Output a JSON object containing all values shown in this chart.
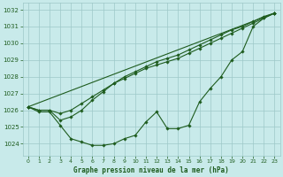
{
  "background_color": "#c8eaea",
  "grid_color": "#9dc8c8",
  "line_color": "#1e5c1e",
  "title": "Graphe pression niveau de la mer (hPa)",
  "xlim": [
    -0.5,
    23.5
  ],
  "ylim": [
    1023.3,
    1032.4
  ],
  "yticks": [
    1024,
    1025,
    1026,
    1027,
    1028,
    1029,
    1030,
    1031,
    1032
  ],
  "xticks": [
    0,
    1,
    2,
    3,
    4,
    5,
    6,
    7,
    8,
    9,
    10,
    11,
    12,
    13,
    14,
    15,
    16,
    17,
    18,
    19,
    20,
    21,
    22,
    23
  ],
  "straight_line_x": [
    0,
    23
  ],
  "straight_line_y": [
    1026.2,
    1031.8
  ],
  "smooth1_x": [
    0,
    1,
    2,
    3,
    4,
    5,
    6,
    7,
    8,
    9,
    10,
    11,
    12,
    13,
    14,
    15,
    16,
    17,
    18,
    19,
    20,
    21,
    22,
    23
  ],
  "smooth1_y": [
    1026.2,
    1026.0,
    1026.0,
    1025.8,
    1026.0,
    1026.4,
    1026.8,
    1027.2,
    1027.6,
    1027.9,
    1028.2,
    1028.5,
    1028.7,
    1028.9,
    1029.1,
    1029.4,
    1029.7,
    1030.0,
    1030.3,
    1030.6,
    1030.9,
    1031.2,
    1031.5,
    1031.8
  ],
  "smooth2_x": [
    0,
    1,
    2,
    3,
    4,
    5,
    6,
    7,
    8,
    9,
    10,
    11,
    12,
    13,
    14,
    15,
    16,
    17,
    18,
    19,
    20,
    21,
    22,
    23
  ],
  "smooth2_y": [
    1026.2,
    1026.0,
    1026.0,
    1025.4,
    1025.6,
    1026.0,
    1026.6,
    1027.1,
    1027.6,
    1028.0,
    1028.3,
    1028.6,
    1028.9,
    1029.1,
    1029.3,
    1029.6,
    1029.9,
    1030.2,
    1030.5,
    1030.8,
    1031.0,
    1031.3,
    1031.6,
    1031.8
  ],
  "wavy_x": [
    0,
    1,
    2,
    3,
    4,
    5,
    6,
    7,
    8,
    9,
    10,
    11,
    12,
    13,
    14,
    15,
    16,
    17,
    18,
    19,
    20,
    21,
    22,
    23
  ],
  "wavy_y": [
    1026.2,
    1025.9,
    1025.9,
    1025.1,
    1024.3,
    1024.1,
    1023.9,
    1023.9,
    1024.0,
    1024.3,
    1024.5,
    1025.3,
    1025.9,
    1024.9,
    1024.9,
    1025.1,
    1026.5,
    1027.3,
    1028.0,
    1029.0,
    1029.5,
    1031.0,
    1031.5,
    1031.8
  ],
  "figsize": [
    3.2,
    2.0
  ],
  "dpi": 100
}
